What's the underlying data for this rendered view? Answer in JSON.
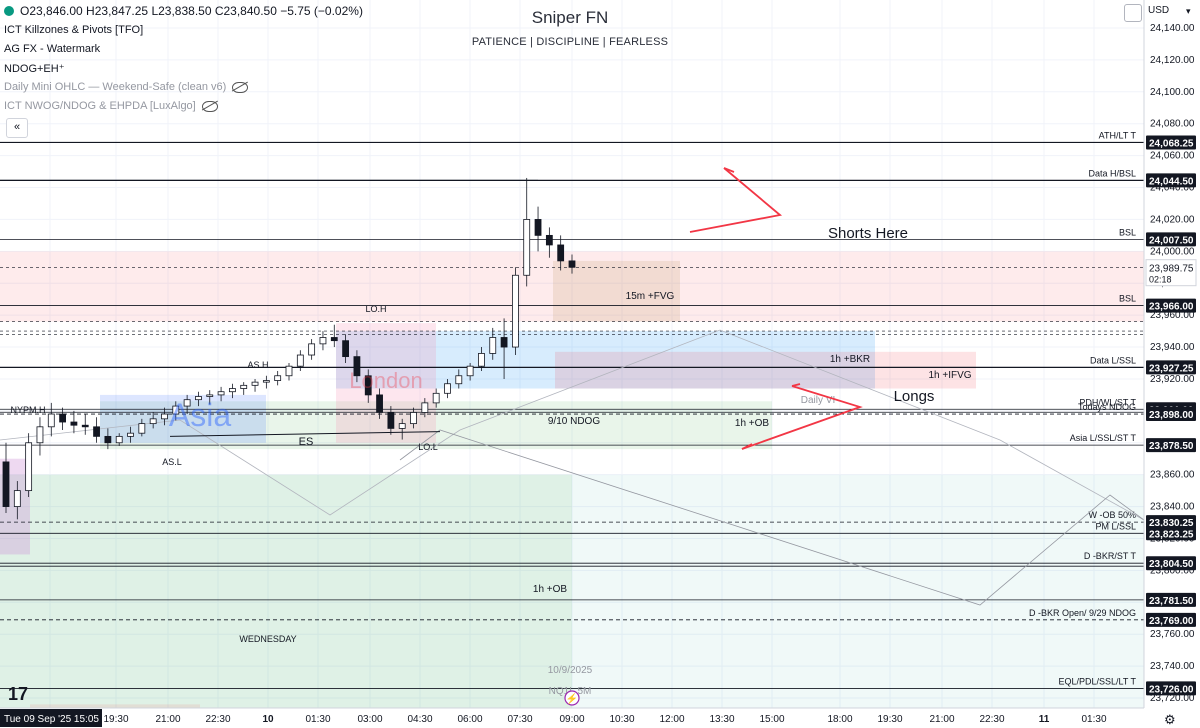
{
  "legend": {
    "ohlc": "O23,846.00 H23,847.25 L23,838.50 C23,840.50 −5.75 (−0.02%)",
    "indicators": [
      {
        "label": "ICT Killzones & Pivots [TFO]",
        "hidden": false
      },
      {
        "label": "AG FX - Watermark",
        "hidden": false
      },
      {
        "label": "NDOG+EH⁺",
        "hidden": false
      },
      {
        "label": "Daily Mini OHLC — Weekend-Safe (clean v6)",
        "hidden": true
      },
      {
        "label": "ICT NWOG/NDOG & EHPDA [LuxAlgo]",
        "hidden": true
      }
    ],
    "collapse_glyph": "«"
  },
  "watermark": {
    "title": "Sniper FN",
    "subtitle": "PATIENCE  |  DISCIPLINE  |  FEARLESS"
  },
  "currency": "USD",
  "colors": {
    "up": "#089981",
    "down": "#f23645",
    "accent": "#2962ff",
    "label_bg": "#131722"
  },
  "chart_data": {
    "type": "candlestick",
    "title": "",
    "symbol_hint": "NQ1!, 5M",
    "date_label": "10/9/2025",
    "day_label": "WEDNESDAY",
    "ylim": [
      23710,
      24150
    ],
    "y_ticks": [
      23720,
      23740,
      23760,
      23780,
      23800,
      23820,
      23840,
      23860,
      23880,
      23900,
      23920,
      23940,
      23960,
      23980,
      24000,
      24020,
      24040,
      24060,
      24080,
      24100,
      24120,
      24140
    ],
    "x_ticks": [
      "Tue 09 Sep '25  15:05",
      "19:30",
      "21:00",
      "22:30",
      "10",
      "01:30",
      "03:00",
      "04:30",
      "06:00",
      "07:30",
      "09:00",
      "10:30",
      "12:00",
      "13:30",
      "15:00",
      "18:00",
      "19:30",
      "21:00",
      "22:30",
      "11",
      "01:30"
    ],
    "price_levels": [
      {
        "price": 24068.25,
        "label": "ATH/LT T",
        "tag": "24,068.25",
        "style": "solid"
      },
      {
        "price": 24044.5,
        "label": "Data H/BSL",
        "tag": "24,044.50",
        "style": "solid"
      },
      {
        "price": 24007.5,
        "label": "BSL",
        "tag": "24,007.50",
        "style": "thin"
      },
      {
        "price": 23966.0,
        "label": "BSL",
        "tag": "23,966.00",
        "style": "thin"
      },
      {
        "price": 23927.25,
        "label": "Data L/SSL",
        "tag": "23,927.25",
        "style": "solid"
      },
      {
        "price": 23901.0,
        "label": "PDH/WL/ST T",
        "tag": "23,901.00",
        "style": "double"
      },
      {
        "price": 23898.0,
        "label": "Todays NDOG",
        "tag": "23,898.00",
        "style": "dashed"
      },
      {
        "price": 23878.5,
        "label": "Asia L/SSL/ST T",
        "tag": "23,878.50",
        "style": "thin"
      },
      {
        "price": 23830.25,
        "label": "W -OB 50%",
        "tag": "23,830.25",
        "style": "dashed"
      },
      {
        "price": 23823.25,
        "label": "PM L/SSL",
        "tag": "23,823.25",
        "style": "thin"
      },
      {
        "price": 23804.5,
        "label": "D -BKR/ST T",
        "tag": "23,804.50",
        "style": "double"
      },
      {
        "price": 23781.5,
        "label": "",
        "tag": "23,781.50",
        "style": "thin"
      },
      {
        "price": 23769.0,
        "label": "D -BKR Open/ 9/29 NDOG",
        "tag": "23,769.00",
        "style": "dashed"
      },
      {
        "price": 23726.0,
        "label": "EQL/PDL/SSL/LT T",
        "tag": "23,726.00",
        "style": "thin"
      }
    ],
    "current_price": {
      "tag": "23,989.75",
      "countdown": "02:18"
    },
    "zones": [
      {
        "label": "15m +FVG",
        "p_top": 23994,
        "p_bot": 23956,
        "x_start": "08:55",
        "x_end": "12:20"
      },
      {
        "label": "1h +BKR",
        "p_top": 23950,
        "p_bot": 23914,
        "x_start": "02:50",
        "x_end": "19:40"
      },
      {
        "label": "1h +IFVG",
        "p_top": 23937,
        "p_bot": 23914,
        "x_start": "09:00",
        "x_end": "22:10"
      },
      {
        "label": "1h +OB",
        "p_top": 23906,
        "p_bot": 23876,
        "x_start": "20:40",
        "x_end": "15:00"
      },
      {
        "label": "1h +OB",
        "p_top": 23860,
        "p_bot": 23710,
        "x_start": "15:05",
        "x_end": "23:00"
      },
      {
        "label": "Asia",
        "p_top": 23910,
        "p_bot": 23880,
        "x_start": "20:40",
        "x_end": "00:00"
      },
      {
        "label": "London",
        "p_top": 23955,
        "p_bot": 23880,
        "x_start": "02:15",
        "x_end": "05:00"
      }
    ],
    "labels": [
      "LO.H",
      "LO.L",
      "AS.H",
      "AS.L",
      "NYPM.H",
      "ES",
      "9/10 NDOG",
      "Daily VI",
      "Shorts Here",
      "Longs"
    ],
    "ohlc": [
      [
        23868,
        23880,
        23836,
        23840
      ],
      [
        23840,
        23856,
        23832,
        23850
      ],
      [
        23850,
        23886,
        23846,
        23880
      ],
      [
        23880,
        23896,
        23872,
        23890
      ],
      [
        23890,
        23905,
        23884,
        23898
      ],
      [
        23898,
        23902,
        23888,
        23893
      ],
      [
        23893,
        23900,
        23886,
        23891
      ],
      [
        23891,
        23898,
        23885,
        23890
      ],
      [
        23890,
        23896,
        23880,
        23884
      ],
      [
        23884,
        23889,
        23876,
        23880
      ],
      [
        23880,
        23886,
        23878,
        23884
      ],
      [
        23884,
        23890,
        23880,
        23886
      ],
      [
        23886,
        23895,
        23884,
        23892
      ],
      [
        23892,
        23899,
        23889,
        23895
      ],
      [
        23895,
        23902,
        23891,
        23898
      ],
      [
        23898,
        23906,
        23894,
        23903
      ],
      [
        23903,
        23910,
        23898,
        23907
      ],
      [
        23907,
        23912,
        23903,
        23909
      ],
      [
        23909,
        23913,
        23904,
        23910
      ],
      [
        23910,
        23915,
        23906,
        23912
      ],
      [
        23912,
        23917,
        23908,
        23914
      ],
      [
        23914,
        23918,
        23910,
        23916
      ],
      [
        23916,
        23920,
        23912,
        23918
      ],
      [
        23918,
        23922,
        23914,
        23919
      ],
      [
        23919,
        23925,
        23916,
        23922
      ],
      [
        23922,
        23930,
        23919,
        23928
      ],
      [
        23928,
        23938,
        23925,
        23935
      ],
      [
        23935,
        23945,
        23932,
        23942
      ],
      [
        23942,
        23950,
        23938,
        23946
      ],
      [
        23946,
        23954,
        23940,
        23944
      ],
      [
        23944,
        23948,
        23930,
        23934
      ],
      [
        23934,
        23938,
        23918,
        23922
      ],
      [
        23922,
        23926,
        23905,
        23910
      ],
      [
        23910,
        23914,
        23895,
        23899
      ],
      [
        23899,
        23903,
        23885,
        23889
      ],
      [
        23889,
        23895,
        23882,
        23892
      ],
      [
        23892,
        23902,
        23889,
        23899
      ],
      [
        23899,
        23908,
        23896,
        23905
      ],
      [
        23905,
        23914,
        23902,
        23911
      ],
      [
        23911,
        23920,
        23908,
        23917
      ],
      [
        23917,
        23926,
        23914,
        23922
      ],
      [
        23922,
        23930,
        23919,
        23928
      ],
      [
        23928,
        23940,
        23925,
        23936
      ],
      [
        23936,
        23952,
        23932,
        23946
      ],
      [
        23946,
        23958,
        23920,
        23940
      ],
      [
        23940,
        23990,
        23935,
        23985
      ],
      [
        23985,
        24046,
        23978,
        24020
      ],
      [
        24020,
        24028,
        24000,
        24010
      ],
      [
        24010,
        24015,
        23996,
        24004
      ],
      [
        24004,
        24010,
        23988,
        23994
      ],
      [
        23994,
        23998,
        23986,
        23990
      ]
    ]
  },
  "annotations": {
    "shorts_label": "Shorts Here",
    "longs_label": "Longs"
  }
}
